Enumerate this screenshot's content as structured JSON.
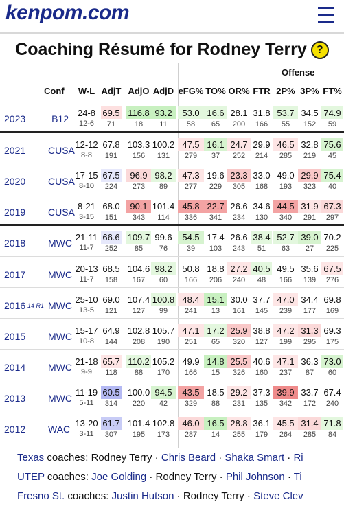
{
  "site": {
    "logo": "kenpom.com"
  },
  "page_title": "Coaching Résumé for Rodney Terry",
  "help_glyph": "?",
  "section_label": "Offense",
  "columns": [
    "Conf",
    "W-L",
    "AdjT",
    "AdjO",
    "AdjD",
    "eFG%",
    "TO%",
    "OR%",
    "FTR",
    "2P%",
    "3P%",
    "FT%"
  ],
  "rows": [
    {
      "year": "2023",
      "tag": "",
      "conf": "B12",
      "wl": "24-8",
      "cwl": "12-6",
      "cells": [
        [
          "69.5",
          "71",
          "#fde0e0"
        ],
        [
          "116.8",
          "18",
          "#c8f0c0"
        ],
        [
          "93.2",
          "11",
          "#c8f0c0"
        ],
        [
          "53.0",
          "58",
          "#e3f7de"
        ],
        [
          "16.6",
          "65",
          "#e3f7de"
        ],
        [
          "28.1",
          "200",
          ""
        ],
        [
          "31.8",
          "166",
          ""
        ],
        [
          "53.7",
          "55",
          "#e3f7de"
        ],
        [
          "34.5",
          "152",
          ""
        ],
        [
          "74.9",
          "59",
          "#e3f7de"
        ]
      ]
    },
    {
      "year": "2021",
      "tag": "",
      "conf": "CUSA",
      "wl": "12-12",
      "cwl": "8-8",
      "cells": [
        [
          "67.8",
          "191",
          ""
        ],
        [
          "103.3",
          "156",
          ""
        ],
        [
          "100.2",
          "131",
          ""
        ],
        [
          "47.5",
          "279",
          "#fde5e5"
        ],
        [
          "16.1",
          "37",
          "#d6f3cf"
        ],
        [
          "24.7",
          "252",
          "#fde5e5"
        ],
        [
          "29.9",
          "214",
          ""
        ],
        [
          "46.5",
          "285",
          "#fde5e5"
        ],
        [
          "32.8",
          "219",
          ""
        ],
        [
          "75.6",
          "45",
          "#d6f3cf"
        ]
      ]
    },
    {
      "year": "2020",
      "tag": "",
      "conf": "CUSA",
      "wl": "17-15",
      "cwl": "8-10",
      "cells": [
        [
          "67.5",
          "224",
          "#e6e8fb"
        ],
        [
          "96.9",
          "273",
          "#fbd9d9"
        ],
        [
          "98.2",
          "89",
          "#e3f7de"
        ],
        [
          "47.3",
          "277",
          "#fde5e5"
        ],
        [
          "19.6",
          "229",
          ""
        ],
        [
          "23.3",
          "305",
          "#f9c8c8"
        ],
        [
          "33.0",
          "168",
          ""
        ],
        [
          "49.0",
          "193",
          ""
        ],
        [
          "29.9",
          "323",
          "#f9c8c8"
        ],
        [
          "75.4",
          "40",
          "#d6f3cf"
        ]
      ]
    },
    {
      "year": "2019",
      "tag": "",
      "conf": "CUSA",
      "wl": "8-21",
      "cwl": "3-15",
      "cells": [
        [
          "68.0",
          "151",
          ""
        ],
        [
          "90.1",
          "343",
          "#f3a3a3"
        ],
        [
          "101.4",
          "114",
          ""
        ],
        [
          "45.8",
          "336",
          "#f3a3a3"
        ],
        [
          "22.7",
          "341",
          "#f3a3a3"
        ],
        [
          "26.6",
          "234",
          ""
        ],
        [
          "34.6",
          "130",
          ""
        ],
        [
          "44.5",
          "340",
          "#f3a3a3"
        ],
        [
          "31.9",
          "291",
          "#fde5e5"
        ],
        [
          "67.3",
          "297",
          "#fbd9d9"
        ]
      ]
    },
    {
      "year": "2018",
      "tag": "",
      "conf": "MWC",
      "wl": "21-11",
      "cwl": "11-7",
      "cells": [
        [
          "66.6",
          "252",
          "#e6e8fb"
        ],
        [
          "109.7",
          "85",
          "#e3f7de"
        ],
        [
          "99.6",
          "76",
          ""
        ],
        [
          "54.5",
          "39",
          "#d6f3cf"
        ],
        [
          "17.4",
          "103",
          ""
        ],
        [
          "26.6",
          "243",
          ""
        ],
        [
          "38.4",
          "51",
          "#e3f7de"
        ],
        [
          "52.7",
          "63",
          "#e3f7de"
        ],
        [
          "39.0",
          "27",
          "#d6f3cf"
        ],
        [
          "70.2",
          "225",
          ""
        ]
      ]
    },
    {
      "year": "2017",
      "tag": "",
      "conf": "MWC",
      "wl": "20-13",
      "cwl": "11-7",
      "cells": [
        [
          "68.5",
          "158",
          ""
        ],
        [
          "104.6",
          "167",
          ""
        ],
        [
          "98.2",
          "60",
          "#e3f7de"
        ],
        [
          "50.8",
          "166",
          ""
        ],
        [
          "18.8",
          "206",
          ""
        ],
        [
          "27.2",
          "240",
          "#fde5e5"
        ],
        [
          "40.5",
          "48",
          "#e3f7de"
        ],
        [
          "49.5",
          "166",
          ""
        ],
        [
          "35.6",
          "139",
          ""
        ],
        [
          "67.5",
          "276",
          "#fde5e5"
        ]
      ]
    },
    {
      "year": "2016",
      "tag": "14 R1",
      "conf": "MWC",
      "wl": "25-10",
      "cwl": "13-5",
      "cells": [
        [
          "69.0",
          "121",
          ""
        ],
        [
          "107.4",
          "127",
          ""
        ],
        [
          "100.8",
          "99",
          "#e3f7de"
        ],
        [
          "48.4",
          "241",
          "#fde5e5"
        ],
        [
          "15.1",
          "13",
          "#c8f0c0"
        ],
        [
          "30.0",
          "161",
          ""
        ],
        [
          "37.7",
          "145",
          ""
        ],
        [
          "47.0",
          "239",
          "#fde5e5"
        ],
        [
          "34.4",
          "177",
          ""
        ],
        [
          "69.8",
          "169",
          ""
        ]
      ]
    },
    {
      "year": "2015",
      "tag": "",
      "conf": "MWC",
      "wl": "15-17",
      "cwl": "10-8",
      "cells": [
        [
          "64.9",
          "144",
          ""
        ],
        [
          "102.8",
          "208",
          ""
        ],
        [
          "105.7",
          "190",
          ""
        ],
        [
          "47.1",
          "251",
          "#fde5e5"
        ],
        [
          "17.2",
          "65",
          "#e3f7de"
        ],
        [
          "25.9",
          "320",
          "#f9c8c8"
        ],
        [
          "38.8",
          "127",
          ""
        ],
        [
          "47.2",
          "199",
          "#fde5e5"
        ],
        [
          "31.3",
          "295",
          "#fbd9d9"
        ],
        [
          "69.3",
          "175",
          ""
        ]
      ]
    },
    {
      "year": "2014",
      "tag": "",
      "conf": "MWC",
      "wl": "21-18",
      "cwl": "9-9",
      "cells": [
        [
          "65.7",
          "118",
          "#fde5e5"
        ],
        [
          "110.2",
          "88",
          "#e3f7de"
        ],
        [
          "105.2",
          "170",
          ""
        ],
        [
          "49.9",
          "166",
          ""
        ],
        [
          "14.8",
          "15",
          "#c8f0c0"
        ],
        [
          "25.5",
          "326",
          "#f9c8c8"
        ],
        [
          "40.6",
          "160",
          ""
        ],
        [
          "47.1",
          "237",
          "#fde5e5"
        ],
        [
          "36.3",
          "87",
          ""
        ],
        [
          "73.0",
          "60",
          "#d6f3cf"
        ]
      ]
    },
    {
      "year": "2013",
      "tag": "",
      "conf": "MWC",
      "wl": "11-19",
      "cwl": "5-11",
      "cells": [
        [
          "60.5",
          "314",
          "#b4b9f3"
        ],
        [
          "100.0",
          "220",
          ""
        ],
        [
          "94.5",
          "42",
          "#d6f3cf"
        ],
        [
          "43.5",
          "329",
          "#f3a3a3"
        ],
        [
          "18.5",
          "88",
          ""
        ],
        [
          "29.2",
          "231",
          "#fde5e5"
        ],
        [
          "37.3",
          "135",
          ""
        ],
        [
          "39.9",
          "342",
          "#ef8b8b"
        ],
        [
          "33.7",
          "172",
          ""
        ],
        [
          "67.4",
          "240",
          ""
        ]
      ]
    },
    {
      "year": "2012",
      "tag": "",
      "conf": "WAC",
      "wl": "13-20",
      "cwl": "3-11",
      "cells": [
        [
          "61.7",
          "307",
          "#c8ccf6"
        ],
        [
          "101.4",
          "195",
          ""
        ],
        [
          "102.8",
          "173",
          ""
        ],
        [
          "46.0",
          "287",
          "#fbd9d9"
        ],
        [
          "16.5",
          "14",
          "#c8f0c0"
        ],
        [
          "28.8",
          "255",
          "#fde5e5"
        ],
        [
          "36.1",
          "179",
          ""
        ],
        [
          "45.5",
          "264",
          "#fde5e5"
        ],
        [
          "31.4",
          "285",
          "#fbd9d9"
        ],
        [
          "71.8",
          "84",
          "#e3f7de"
        ]
      ]
    }
  ],
  "footer": [
    {
      "team": "Texas",
      "label": "coaches:",
      "items": [
        [
          "Rodney Terry",
          false
        ],
        [
          "Chris Beard",
          true
        ],
        [
          "Shaka Smart",
          true
        ],
        [
          "Ri",
          true
        ]
      ]
    },
    {
      "team": "UTEP",
      "label": "coaches:",
      "items": [
        [
          "Joe Golding",
          true
        ],
        [
          "Rodney Terry",
          false
        ],
        [
          "Phil Johnson",
          true
        ],
        [
          "Ti",
          true
        ]
      ]
    },
    {
      "team": "Fresno St.",
      "label": "coaches:",
      "items": [
        [
          "Justin Hutson",
          true
        ],
        [
          "Rodney Terry",
          false
        ],
        [
          "Steve Clev",
          true
        ]
      ]
    }
  ]
}
